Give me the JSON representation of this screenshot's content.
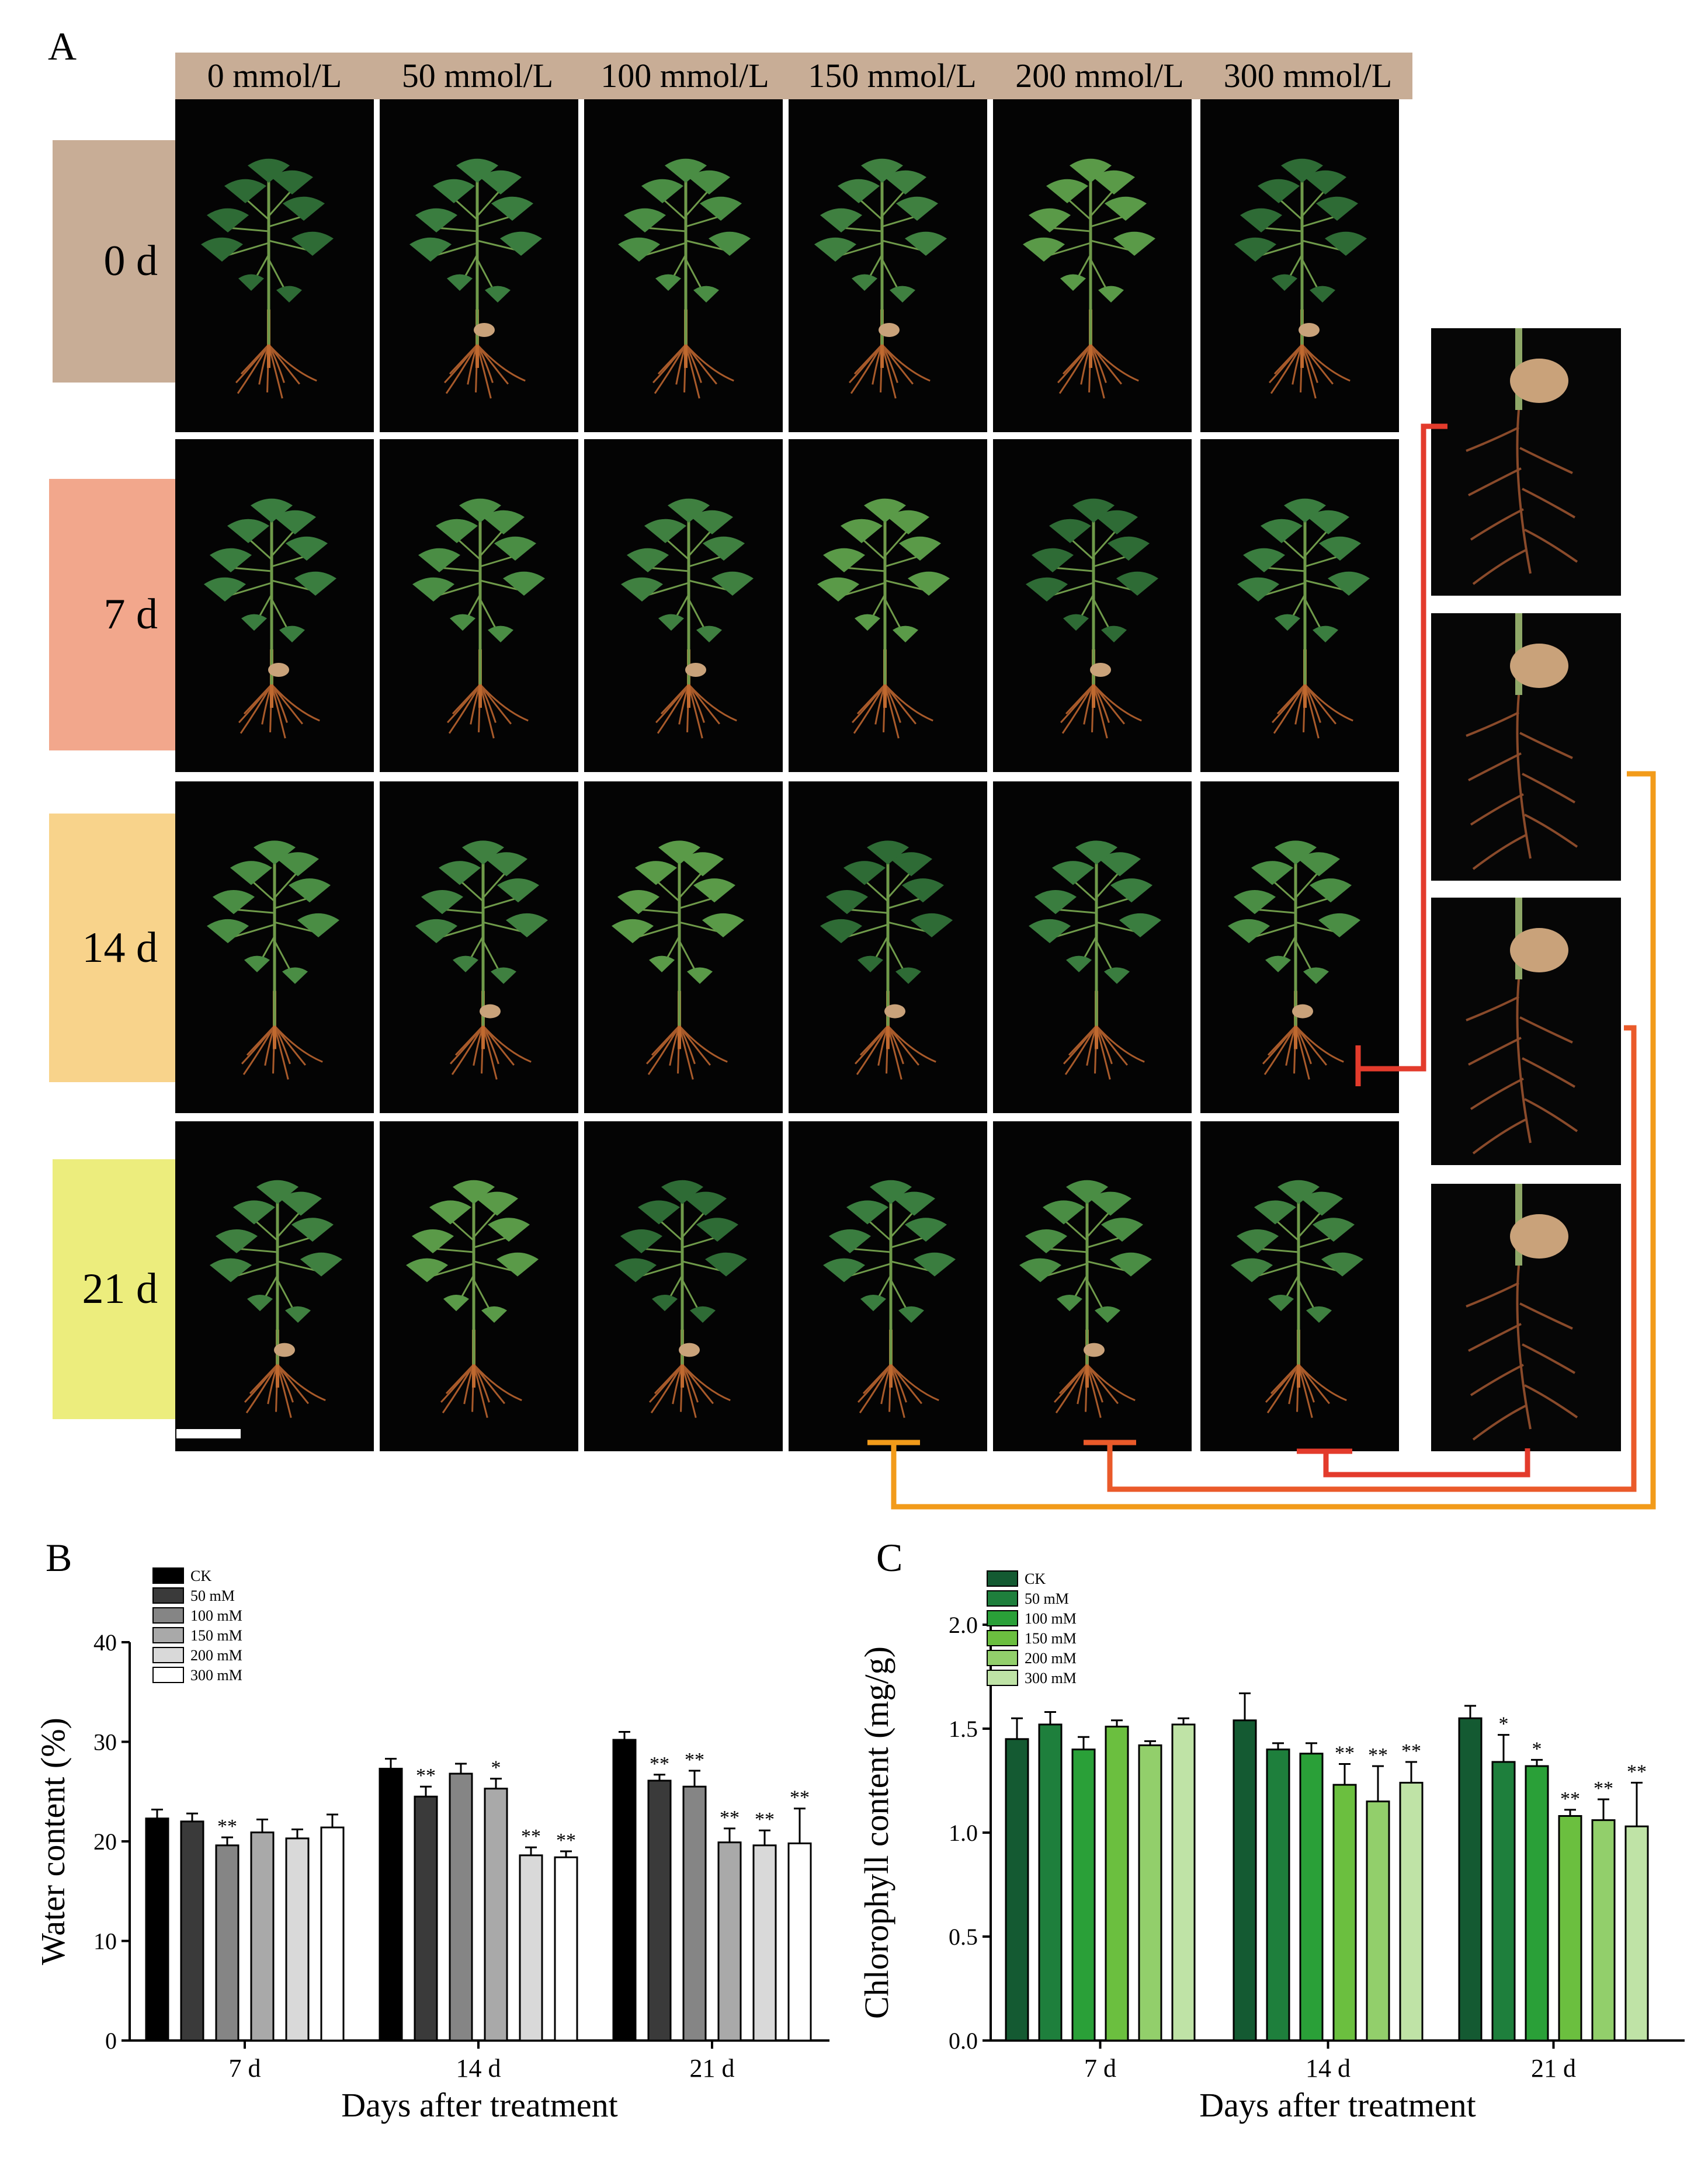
{
  "panelA": {
    "letter": "A",
    "columns": [
      "0 mmol/L",
      "50 mmol/L",
      "100 mmol/L",
      "150 mmol/L",
      "200 mmol/L",
      "300 mmol/L"
    ],
    "rows": [
      {
        "label": "0 d",
        "color": "#c8ad96"
      },
      {
        "label": "7 d",
        "color": "#f2a78c"
      },
      {
        "label": "14 d",
        "color": "#f8d38b"
      },
      {
        "label": "21 d",
        "color": "#eced7d"
      }
    ],
    "connector_colors": [
      "#e33b2c",
      "#f29b1a",
      "#ea5a2a",
      "#e33b2c"
    ]
  },
  "panelB": {
    "letter": "B"
  },
  "panelC": {
    "letter": "C"
  },
  "chart_data": [
    {
      "type": "bar",
      "ylabel": "Water content (%)",
      "xlabel": "Days after treatment",
      "categories": [
        "7 d",
        "14 d",
        "21 d"
      ],
      "ylim": [
        0,
        40
      ],
      "yticks": [
        0,
        10,
        20,
        30,
        40
      ],
      "legend_position": "top-left",
      "series": [
        {
          "name": "CK",
          "values": [
            22.3,
            27.3,
            30.2
          ],
          "errors": [
            0.9,
            1.0,
            0.8
          ],
          "sig": [
            "",
            "",
            ""
          ],
          "color": "#000000"
        },
        {
          "name": "50 mM",
          "values": [
            22.0,
            24.5,
            26.1
          ],
          "errors": [
            0.8,
            1.0,
            0.6
          ],
          "sig": [
            "",
            "**",
            "**"
          ],
          "color": "#3a3a3a"
        },
        {
          "name": "100 mM",
          "values": [
            19.6,
            26.8,
            25.5
          ],
          "errors": [
            0.8,
            1.0,
            1.6
          ],
          "sig": [
            "**",
            "",
            "**"
          ],
          "color": "#858585"
        },
        {
          "name": "150 mM",
          "values": [
            20.9,
            25.3,
            19.9
          ],
          "errors": [
            1.3,
            1.0,
            1.4
          ],
          "sig": [
            "",
            "*",
            "**"
          ],
          "color": "#a9a9a9"
        },
        {
          "name": "200 mM",
          "values": [
            20.3,
            18.6,
            19.6
          ],
          "errors": [
            0.9,
            0.8,
            1.5
          ],
          "sig": [
            "",
            "**",
            "**"
          ],
          "color": "#d9d9d9"
        },
        {
          "name": "300 mM",
          "values": [
            21.4,
            18.4,
            19.8
          ],
          "errors": [
            1.3,
            0.6,
            3.5
          ],
          "sig": [
            "",
            "**",
            "**"
          ],
          "color": "#ffffff"
        }
      ]
    },
    {
      "type": "bar",
      "ylabel": "Chlorophyll content (mg/g)",
      "xlabel": "Days after treatment",
      "categories": [
        "7 d",
        "14 d",
        "21 d"
      ],
      "ylim": [
        0,
        2.0
      ],
      "yticks": [
        "0.0",
        "0.5",
        "1.0",
        "1.5",
        "2.0"
      ],
      "legend_position": "top-left",
      "series": [
        {
          "name": "CK",
          "values": [
            1.45,
            1.54,
            1.55
          ],
          "errors": [
            0.1,
            0.13,
            0.06
          ],
          "sig": [
            "",
            "",
            ""
          ],
          "color": "#145a32"
        },
        {
          "name": "50 mM",
          "values": [
            1.52,
            1.4,
            1.34
          ],
          "errors": [
            0.06,
            0.03,
            0.13
          ],
          "sig": [
            "",
            "",
            "*"
          ],
          "color": "#1e7f3c"
        },
        {
          "name": "100 mM",
          "values": [
            1.4,
            1.38,
            1.32
          ],
          "errors": [
            0.06,
            0.05,
            0.03
          ],
          "sig": [
            "",
            "",
            "*"
          ],
          "color": "#2aa038"
        },
        {
          "name": "150 mM",
          "values": [
            1.51,
            1.23,
            1.08
          ],
          "errors": [
            0.03,
            0.1,
            0.03
          ],
          "sig": [
            "",
            "**",
            "**"
          ],
          "color": "#6bbf3f"
        },
        {
          "name": "200 mM",
          "values": [
            1.42,
            1.15,
            1.06
          ],
          "errors": [
            0.02,
            0.17,
            0.1
          ],
          "sig": [
            "",
            "**",
            "**"
          ],
          "color": "#92cf6b"
        },
        {
          "name": "300 mM",
          "values": [
            1.52,
            1.24,
            1.03
          ],
          "errors": [
            0.03,
            0.1,
            0.21
          ],
          "sig": [
            "",
            "**",
            "**"
          ],
          "color": "#bfe3a6"
        }
      ]
    }
  ]
}
